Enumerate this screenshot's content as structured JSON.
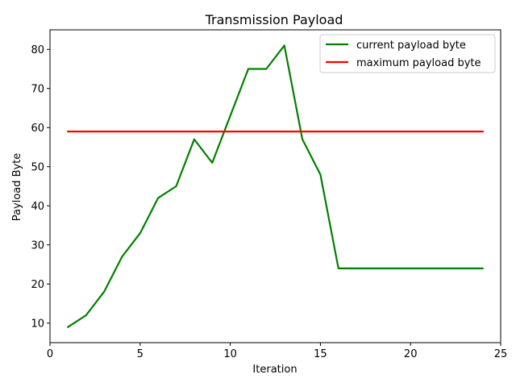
{
  "chart_data": {
    "type": "line",
    "title": "Transmission Payload",
    "xlabel": "Iteration",
    "ylabel": "Payload Byte",
    "xlim": [
      0,
      25
    ],
    "ylim": [
      5,
      85
    ],
    "x_ticks": [
      0,
      5,
      10,
      15,
      20,
      25
    ],
    "y_ticks": [
      10,
      20,
      30,
      40,
      50,
      60,
      70,
      80
    ],
    "grid": false,
    "legend_position": "upper-right",
    "series": [
      {
        "name": "current payload byte",
        "color": "#008000",
        "x": [
          1,
          2,
          3,
          4,
          5,
          6,
          7,
          8,
          9,
          10,
          11,
          12,
          13,
          14,
          15,
          16,
          17,
          18,
          19,
          20,
          21,
          22,
          23,
          24
        ],
        "y": [
          9,
          12,
          18,
          27,
          33,
          42,
          45,
          57,
          51,
          63,
          75,
          75,
          81,
          57,
          48,
          24,
          24,
          24,
          24,
          24,
          24,
          24,
          24,
          24
        ]
      },
      {
        "name": "maximum payload byte",
        "color": "#ff0000",
        "x": [
          1,
          24
        ],
        "y": [
          59,
          59
        ]
      }
    ]
  }
}
